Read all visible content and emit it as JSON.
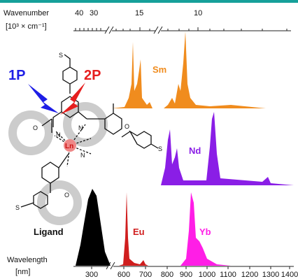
{
  "top_axis": {
    "label": "Wavenumber",
    "unit": "[10³ × cm⁻¹]",
    "ticks": [
      "40",
      "30",
      "15",
      "10"
    ]
  },
  "bottom_axis": {
    "label": "Wavelength",
    "unit": "[nm]",
    "ticks": [
      "300",
      "600",
      "700",
      "800",
      "900",
      "1000",
      "1100",
      "1200",
      "1300",
      "1400"
    ]
  },
  "spectra": {
    "sm": "Sm",
    "nd": "Nd",
    "ligand": "Ligand",
    "eu": "Eu",
    "yb": "Yb"
  },
  "molecule": {
    "excitation_1": "1P",
    "excitation_2": "2P",
    "metal": "Ln",
    "atoms": [
      "N",
      "O",
      "S"
    ]
  }
}
